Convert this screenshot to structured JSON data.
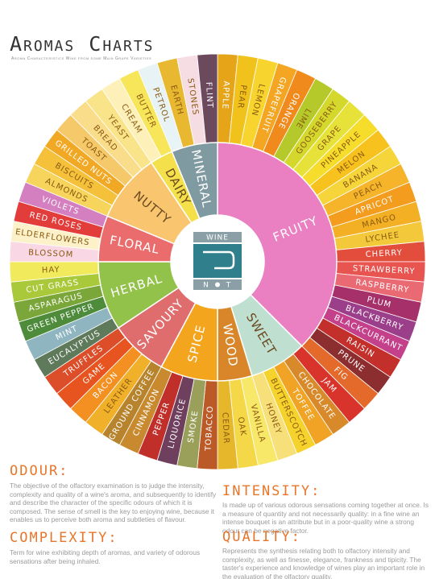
{
  "header": {
    "title": "Aromas Charts",
    "subtitle": "Aroma Characteristics Wine from some Main Grape Varieties"
  },
  "logo": {
    "top": "WINE",
    "bottom_left": "N",
    "bottom_right": "T"
  },
  "wheel": {
    "categories": [
      {
        "name": "Fruity",
        "color": "#ea7fc2",
        "aromas": [
          {
            "name": "Apple",
            "color": "#e6a519"
          },
          {
            "name": "Pear",
            "color": "#f1c21b"
          },
          {
            "name": "Lemon",
            "color": "#f8d52e"
          },
          {
            "name": "Grapefruit",
            "color": "#f4a623"
          },
          {
            "name": "Orange",
            "color": "#f08a1c"
          },
          {
            "name": "Lime",
            "color": "#b6c92a"
          },
          {
            "name": "Gooseberry",
            "color": "#d5d82c"
          },
          {
            "name": "Grape",
            "color": "#e7e23a"
          },
          {
            "name": "Pineapple",
            "color": "#f6dc2b"
          },
          {
            "name": "Melon",
            "color": "#f7c21d"
          },
          {
            "name": "Banana",
            "color": "#f5d53a"
          },
          {
            "name": "Peach",
            "color": "#f5b42a"
          },
          {
            "name": "Apricot",
            "color": "#f39c1e"
          },
          {
            "name": "Mango",
            "color": "#f4b024"
          },
          {
            "name": "Lychee",
            "color": "#f3c93b"
          },
          {
            "name": "Cherry",
            "color": "#e24d3c"
          },
          {
            "name": "Strawberry",
            "color": "#e8544f"
          },
          {
            "name": "Raspberry",
            "color": "#ea6a73"
          },
          {
            "name": "Plum",
            "color": "#a6306a"
          },
          {
            "name": "Blackberry",
            "color": "#9b3f8a"
          },
          {
            "name": "Blackcurrant",
            "color": "#c4408a"
          },
          {
            "name": "Raisin",
            "color": "#c3302c"
          },
          {
            "name": "Prune",
            "color": "#8c2d2f"
          },
          {
            "name": "Fig",
            "color": "#e36a2a"
          }
        ]
      },
      {
        "name": "Sweet",
        "color": "#bfe0d0",
        "aromas": [
          {
            "name": "Jam",
            "color": "#d9342b"
          },
          {
            "name": "Chocolate",
            "color": "#d88a2a"
          },
          {
            "name": "Toffee",
            "color": "#f0a325"
          },
          {
            "name": "Butterscotch",
            "color": "#f5d22c"
          },
          {
            "name": "Honey",
            "color": "#f7e07a"
          }
        ]
      },
      {
        "name": "Wood",
        "color": "#d9862a",
        "aromas": [
          {
            "name": "Vanilla",
            "color": "#f8e86a"
          },
          {
            "name": "Oak",
            "color": "#f5d847"
          },
          {
            "name": "Cedar",
            "color": "#e6b72b"
          }
        ]
      },
      {
        "name": "Spice",
        "color": "#f4a51e",
        "aromas": [
          {
            "name": "Tobacco",
            "color": "#bb5a27"
          },
          {
            "name": "Smoke",
            "color": "#9aa05a"
          },
          {
            "name": "Liquorice",
            "color": "#6f3f5e"
          },
          {
            "name": "Pepper",
            "color": "#c12f2a"
          },
          {
            "name": "Cinnamon",
            "color": "#c98a2f"
          }
        ]
      },
      {
        "name": "Savoury",
        "color": "#e06d6e",
        "aromas": [
          {
            "name": "Ground Coffee",
            "color": "#b7832c"
          },
          {
            "name": "Leather",
            "color": "#f0b02a"
          },
          {
            "name": "Bacon",
            "color": "#f49022"
          },
          {
            "name": "Game",
            "color": "#e8541f"
          },
          {
            "name": "Truffles",
            "color": "#dc4d2a"
          }
        ]
      },
      {
        "name": "Herbal",
        "color": "#93c24a",
        "aromas": [
          {
            "name": "Eucalyptus",
            "color": "#5f7a5a"
          },
          {
            "name": "Mint",
            "color": "#8fb5c0"
          },
          {
            "name": "Green Pepper",
            "color": "#4e8b3a"
          },
          {
            "name": "Asparagus",
            "color": "#7aa63a"
          },
          {
            "name": "Cut Grass",
            "color": "#a9c83a"
          },
          {
            "name": "Hay",
            "color": "#f1ea5c"
          }
        ]
      },
      {
        "name": "Floral",
        "color": "#ea6c6c",
        "aromas": [
          {
            "name": "Blossom",
            "color": "#f9d7e4"
          },
          {
            "name": "Elderflowers",
            "color": "#fdf1c9"
          },
          {
            "name": "Red Roses",
            "color": "#e23c3b"
          },
          {
            "name": "Violets",
            "color": "#d47fc0"
          }
        ]
      },
      {
        "name": "Nutty",
        "color": "#f9c56e",
        "aromas": [
          {
            "name": "Almonds",
            "color": "#f7d45b"
          },
          {
            "name": "Biscuits",
            "color": "#f5c13a"
          },
          {
            "name": "Grilled Nuts",
            "color": "#f1a824"
          },
          {
            "name": "Toast",
            "color": "#f5c86a"
          },
          {
            "name": "Bread",
            "color": "#f9dd8a"
          },
          {
            "name": "Yeast",
            "color": "#fae48a"
          }
        ]
      },
      {
        "name": "Dairy",
        "color": "#f3e04a",
        "aromas": [
          {
            "name": "Cream",
            "color": "#fdf0b8"
          },
          {
            "name": "Butter",
            "color": "#f7e55a"
          }
        ]
      },
      {
        "name": "Mineral",
        "color": "#7f9aa0",
        "aromas": [
          {
            "name": "Petrol",
            "color": "#e8f3f5"
          },
          {
            "name": "Earth",
            "color": "#e8b930"
          },
          {
            "name": "Stones",
            "color": "#f6dde4"
          },
          {
            "name": "Flint",
            "color": "#6c4a5e"
          }
        ]
      }
    ]
  },
  "sections": {
    "odour": {
      "title": "Odour:",
      "text": "The objective of the olfactory examination is to judge the intensity, complexity and quality of a wine's aroma, and subsequently to identify and describe the character of the specific odours of which it is composed. The sense of smell is the key to enjoying wine, because it enables us to perceive both aroma and subtleties of flavour."
    },
    "complexity": {
      "title": "Complexity:",
      "text": "Term for wine exhibiting depth of aromas, and variety of odorous sensations after being inhaled."
    },
    "intensity": {
      "title": "Intensity:",
      "text": "Is made up of various odorous sensations coming together at once. Is a measure of quantity and not necessarily quality: in a fine wine an intense bouquet is an attribute but in a poor-quality wine a strong odour can be negative factor."
    },
    "quality": {
      "title": "Quality:",
      "text": "Represents the synthesis relating both to olfactory intensity and complexity, as well as finesse, elegance, frankness and tipicity. The taster's experience and knowledge of wines play an important role in the evaluation of the olfactory quality."
    }
  }
}
